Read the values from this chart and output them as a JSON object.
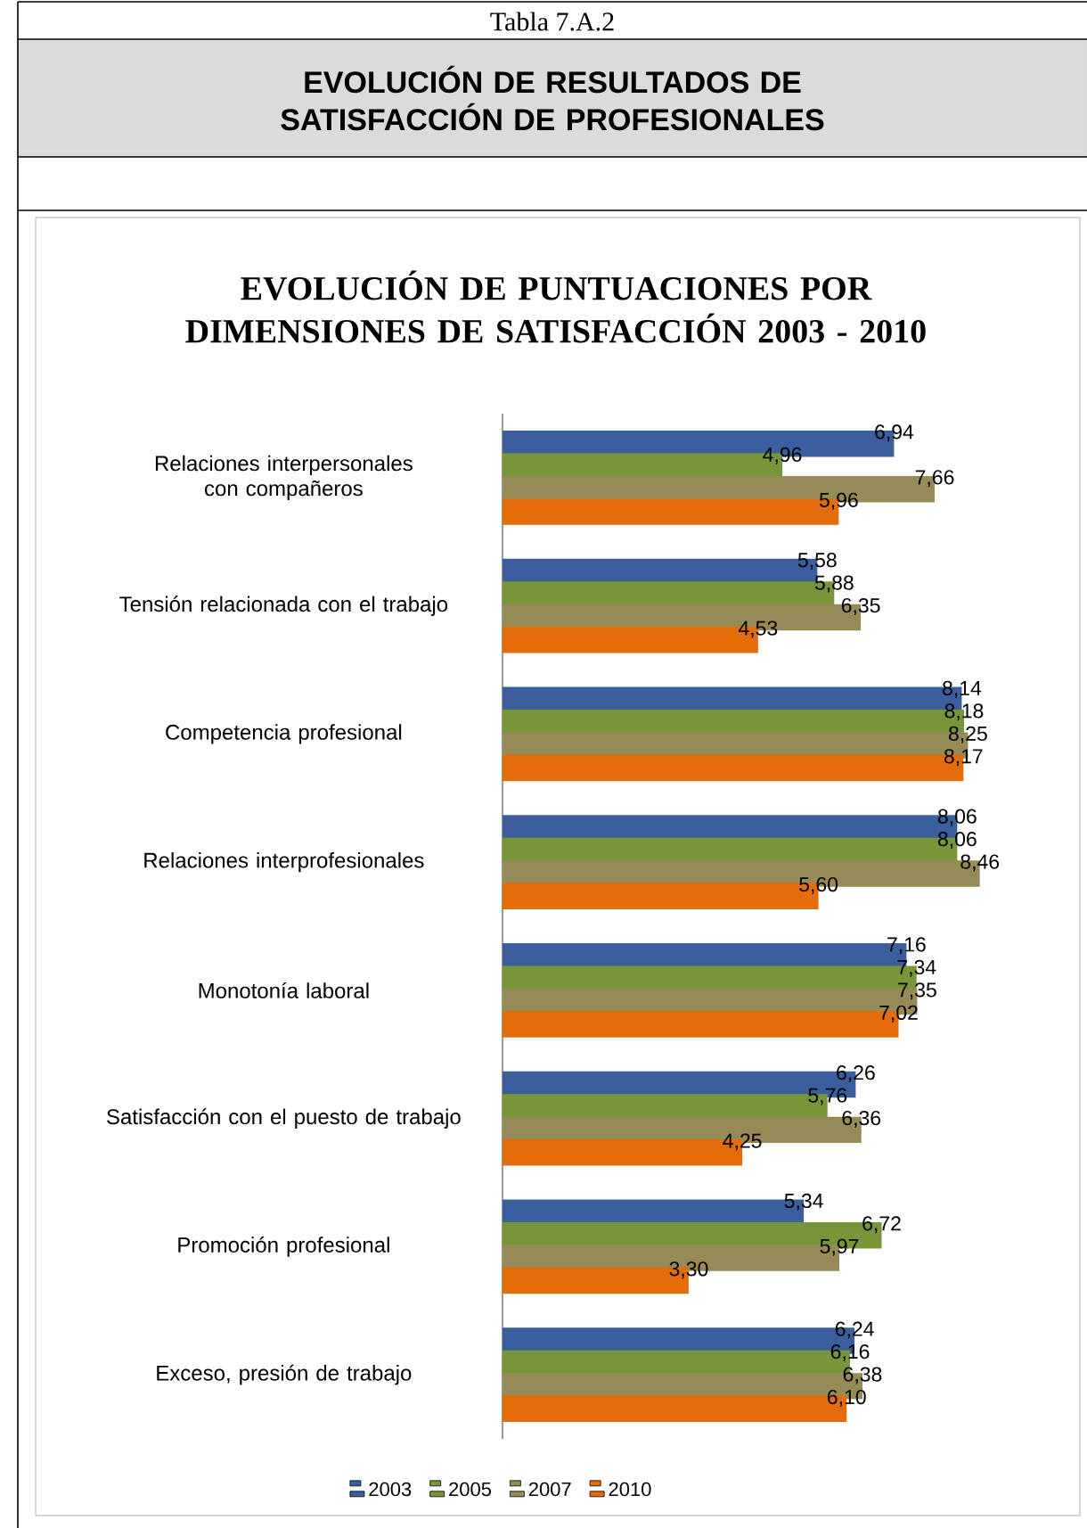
{
  "chart_data": {
    "type": "bar",
    "orientation": "horizontal",
    "title": "EVOLUCIÓN DE PUNTUACIONES POR DIMENSIONES DE SATISFACCIÓN 2003 - 2010",
    "annotations": [
      "Tabla 7.A.2",
      "EVOLUCIÓN DE RESULTADOS DE SATISFACCIÓN DE PROFESIONALES"
    ],
    "categories": [
      "Relaciones interpersonales con compañeros",
      "Tensión relacionada con el trabajo",
      "Competencia profesional",
      "Relaciones interprofesionales",
      "Monotonía laboral",
      "Satisfacción con el puesto de trabajo",
      "Promoción profesional",
      "Exceso, presión de trabajo"
    ],
    "legend": "bottom",
    "series": [
      {
        "name": "2003",
        "color": "#3a5f9c",
        "values": [
          6.94,
          5.58,
          8.14,
          8.06,
          7.16,
          6.26,
          5.34,
          6.24
        ],
        "value_labels": [
          "6,94",
          "5,58",
          "8,14",
          "8,06",
          "7,16",
          "6,26",
          "5,34",
          "6,24"
        ]
      },
      {
        "name": "2005",
        "color": "#77963a",
        "values": [
          4.96,
          5.88,
          8.18,
          8.06,
          7.34,
          5.76,
          6.72,
          6.16
        ],
        "value_labels": [
          "4,96",
          "5,88",
          "8,18",
          "8,06",
          "7,34",
          "5,76",
          "6,72",
          "6,16"
        ]
      },
      {
        "name": "2007",
        "color": "#968a57",
        "values": [
          7.66,
          6.35,
          8.25,
          8.46,
          7.35,
          6.36,
          5.97,
          6.38
        ],
        "value_labels": [
          "7,66",
          "6,35",
          "8,25",
          "8,46",
          "7,35",
          "6,36",
          "5,97",
          "6,38"
        ]
      },
      {
        "name": "2010",
        "color": "#e46c0a",
        "values": [
          5.96,
          4.53,
          8.17,
          5.6,
          7.02,
          4.25,
          3.3,
          6.1
        ],
        "value_labels": [
          "5,96",
          "4,53",
          "8,17",
          "5,60",
          "7,02",
          "4,25",
          "3,30",
          "6,10"
        ]
      }
    ]
  }
}
